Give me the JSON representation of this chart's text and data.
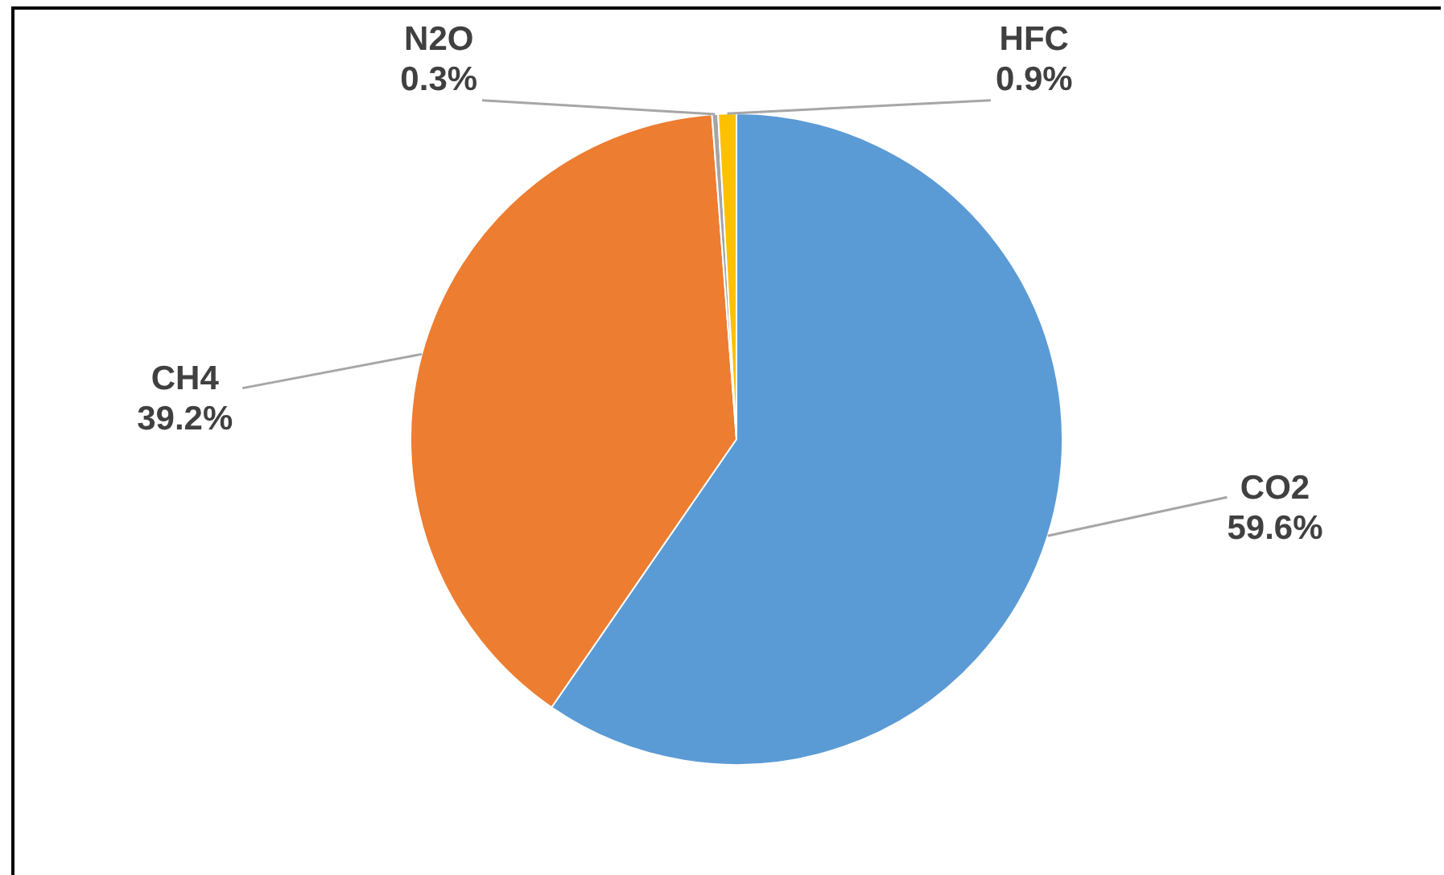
{
  "chart_data": {
    "type": "pie",
    "categories": [
      "CO2",
      "CH4",
      "N2O",
      "HFC"
    ],
    "values": [
      59.6,
      39.2,
      0.3,
      0.9
    ],
    "colors": [
      "#5b9bd5",
      "#ed7d31",
      "#a5a5a5",
      "#ffc000"
    ],
    "value_labels": [
      "59.6%",
      "39.2%",
      "0.3%",
      "0.9%"
    ]
  }
}
